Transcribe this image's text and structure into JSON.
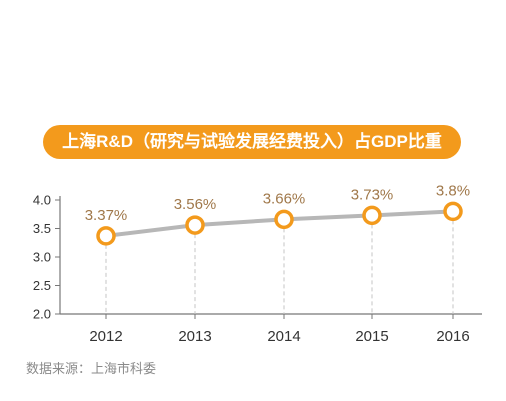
{
  "title": "上海R&D（研究与试验发展经费投入）占GDP比重",
  "source": "数据来源：上海市科委",
  "colors": {
    "accent": "#f39a1c",
    "line": "#b7b7b7",
    "label": "#a0784a",
    "axis_text": "#333333"
  },
  "chart_data": {
    "type": "line",
    "title": "上海R&D（研究与试验发展经费投入）占GDP比重",
    "xlabel": "",
    "ylabel": "",
    "categories": [
      "2012",
      "2013",
      "2014",
      "2015",
      "2016"
    ],
    "values": [
      3.37,
      3.56,
      3.66,
      3.73,
      3.8
    ],
    "data_labels": [
      "3.37%",
      "3.56%",
      "3.66%",
      "3.73%",
      "3.8%"
    ],
    "ylim": [
      2.0,
      4.0
    ],
    "yticks": [
      "2.0",
      "2.5",
      "3.0",
      "3.5",
      "4.0"
    ],
    "grid": false,
    "legend": "none"
  }
}
